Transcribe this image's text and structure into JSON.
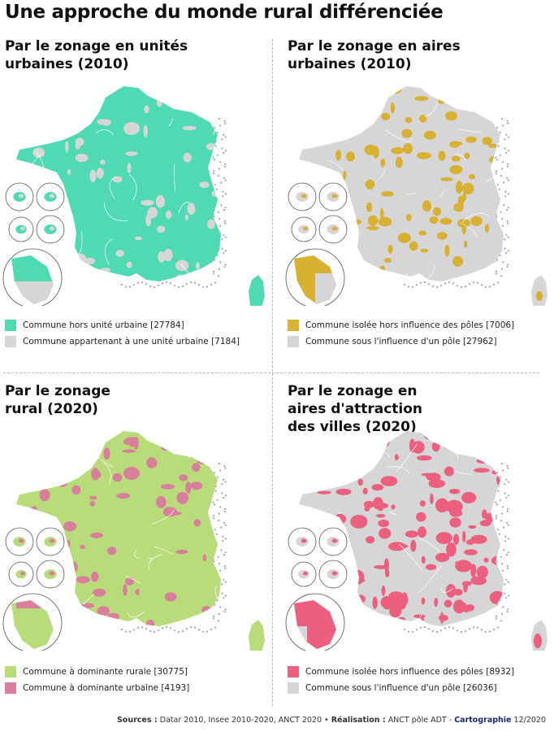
{
  "title": "Une approche du monde rural différenciée",
  "panels": [
    {
      "title": "Par le zonage en unités urbaines (2010)",
      "primary_color": "#4fdab4",
      "secondary_color": "#d6d6d6",
      "legend": [
        {
          "label": "Commune hors unité urbaine [27784]",
          "color": "#4fdab4"
        },
        {
          "label": "Commune appartenant à une unité urbaine [7184]",
          "color": "#d6d6d6"
        }
      ]
    },
    {
      "title": "Par le zonage en aires urbaines (2010)",
      "primary_color": "#d6d6d6",
      "secondary_color": "#d8b032",
      "legend": [
        {
          "label": "Commune isolée hors influence des pôles [7006]",
          "color": "#d8b032"
        },
        {
          "label": "Commune sous l'influence d'un pôle [27962]",
          "color": "#d6d6d6"
        }
      ]
    },
    {
      "title": "Par le zonage rural (2020)",
      "primary_color": "#b8dc7a",
      "secondary_color": "#d97f9c",
      "legend": [
        {
          "label": "Commune à dominante rurale [30775]",
          "color": "#b8dc7a"
        },
        {
          "label": "Commune à dominante urbaine [4193]",
          "color": "#d97f9c"
        }
      ]
    },
    {
      "title": "Par le zonage en aires d'attraction des villes (2020)",
      "primary_color": "#d6d6d6",
      "secondary_color": "#ec5f7e",
      "legend": [
        {
          "label": "Commune isolée hors influence des pôles [8932]",
          "color": "#ec5f7e"
        },
        {
          "label": "Commune sous l'influence d'un pôle [26036]",
          "color": "#d6d6d6"
        }
      ]
    }
  ],
  "footer": {
    "sources_label": "Sources :",
    "sources_text": "Datar 2010, Insee 2010-2020, ANCT 2020",
    "separator": "•",
    "realisation_label": "Réalisation :",
    "realisation_text": "ANCT pôle ADT -",
    "cartographie_label": "Cartographie",
    "date": "12/2020"
  }
}
